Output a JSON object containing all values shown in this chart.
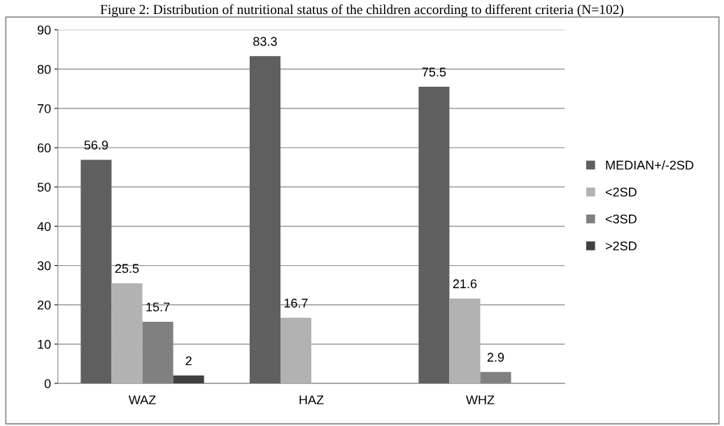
{
  "chart_data": {
    "type": "bar",
    "title": "Figure 2: Distribution of nutritional status of the children according to different criteria (N=102)",
    "categories": [
      "WAZ",
      "HAZ",
      "WHZ"
    ],
    "series": [
      {
        "name": "MEDIAN+/-2SD",
        "color": "#5f5f5f",
        "values": [
          56.9,
          83.3,
          75.5
        ]
      },
      {
        "name": "<2SD",
        "color": "#b2b2b2",
        "values": [
          25.5,
          16.7,
          21.6
        ]
      },
      {
        "name": "<3SD",
        "color": "#808080",
        "values": [
          15.7,
          null,
          2.9
        ]
      },
      {
        "name": ">2SD",
        "color": "#404040",
        "values": [
          2,
          null,
          null
        ]
      }
    ],
    "ylim": [
      0,
      90
    ],
    "yticks": [
      0,
      10,
      20,
      30,
      40,
      50,
      60,
      70,
      80,
      90
    ],
    "grid": "y",
    "legend": "right",
    "data_labels": true
  }
}
